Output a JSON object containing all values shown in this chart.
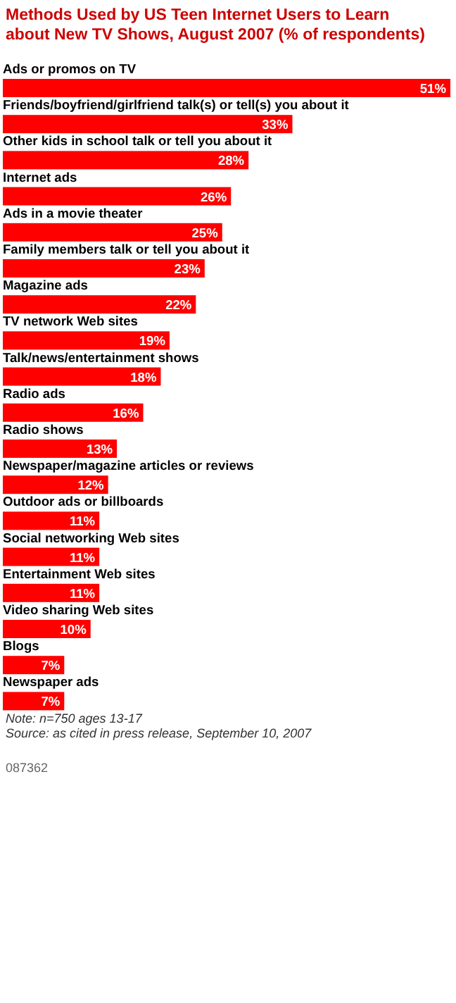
{
  "chart_data": {
    "type": "bar",
    "orientation": "horizontal",
    "title": "Methods Used by US Teen Internet Users to Learn about New TV Shows, August 2007 (% of respondents)",
    "categories": [
      "Ads or promos on TV",
      "Friends/boyfriend/girlfriend talk(s) or tell(s) you about it",
      "Other kids in school talk or tell you about it",
      "Internet ads",
      "Ads in a movie theater",
      "Family members talk or tell you about it",
      "Magazine ads",
      "TV network Web sites",
      "Talk/news/entertainment shows",
      "Radio ads",
      "Radio shows",
      "Newspaper/magazine articles or reviews",
      "Outdoor ads or billboards",
      "Social networking Web sites",
      "Entertainment Web sites",
      "Video sharing Web sites",
      "Blogs",
      "Newspaper ads"
    ],
    "values": [
      51,
      33,
      28,
      26,
      25,
      23,
      22,
      19,
      18,
      16,
      13,
      12,
      11,
      11,
      11,
      10,
      7,
      7
    ],
    "value_labels": [
      "51%",
      "33%",
      "28%",
      "26%",
      "25%",
      "23%",
      "22%",
      "19%",
      "18%",
      "16%",
      "13%",
      "12%",
      "11%",
      "11%",
      "11%",
      "10%",
      "7%",
      "7%"
    ],
    "color": "#ff0000",
    "annotations": [
      "Note: n=750 ages 13-17",
      "Source: as cited in press release, September 10, 2007",
      "087362"
    ]
  }
}
